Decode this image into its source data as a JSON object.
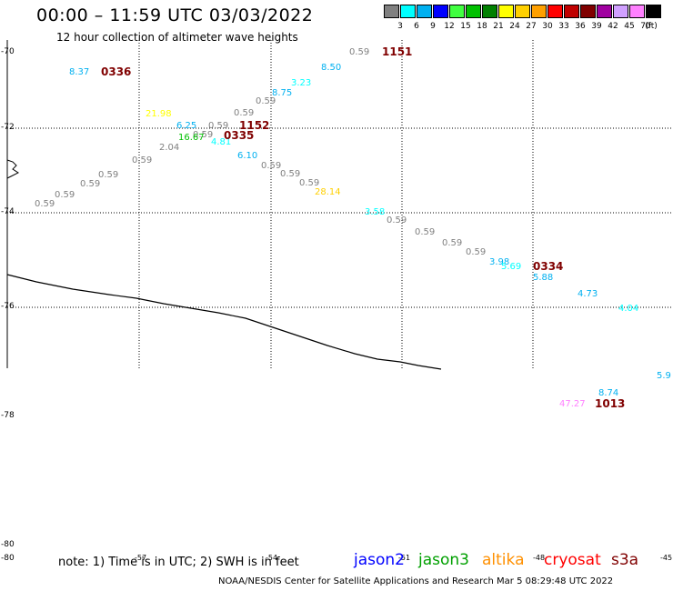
{
  "title": "00:00 – 11:59 UTC 03/03/2022",
  "subtitle": "12 hour collection of altimeter wave heights",
  "legend": {
    "unit": "(ft)",
    "bins": [
      {
        "label": "3",
        "color": "#808080"
      },
      {
        "label": "6",
        "color": "#00ffff"
      },
      {
        "label": "9",
        "color": "#00b0f0"
      },
      {
        "label": "12",
        "color": "#0000ff"
      },
      {
        "label": "15",
        "color": "#40ff40"
      },
      {
        "label": "18",
        "color": "#00c000"
      },
      {
        "label": "21",
        "color": "#008000"
      },
      {
        "label": "24",
        "color": "#ffff00"
      },
      {
        "label": "27",
        "color": "#ffd000"
      },
      {
        "label": "30",
        "color": "#ffa000"
      },
      {
        "label": "33",
        "color": "#ff0000"
      },
      {
        "label": "36",
        "color": "#c00000"
      },
      {
        "label": "39",
        "color": "#800000"
      },
      {
        "label": "42",
        "color": "#a000a0"
      },
      {
        "label": "45",
        "color": "#d0a0ff"
      },
      {
        "label": "70",
        "color": "#ff80ff"
      },
      {
        "label": "",
        "color": "#000000"
      }
    ]
  },
  "lat_labels": [
    "-70",
    "-72",
    "-74",
    "-76",
    "-78",
    "-80",
    "-80"
  ],
  "lon_labels": [
    "-57",
    "-54",
    "-51",
    "-48",
    "-45"
  ],
  "wave_heights": [
    {
      "v": "8.37",
      "c": "#00b0f0"
    },
    {
      "v": "0.59",
      "c": "#808080"
    },
    {
      "v": "8.50",
      "c": "#00b0f0"
    },
    {
      "v": "3.23",
      "c": "#00ffff"
    },
    {
      "v": "8.75",
      "c": "#00b0f0"
    },
    {
      "v": "0.59",
      "c": "#808080"
    },
    {
      "v": "0.59",
      "c": "#808080"
    },
    {
      "v": "21.98",
      "c": "#ffff00"
    },
    {
      "v": "6.25",
      "c": "#00b0f0"
    },
    {
      "v": "0.59",
      "c": "#808080"
    },
    {
      "v": "0.59",
      "c": "#808080"
    },
    {
      "v": "16.67",
      "c": "#00c000"
    },
    {
      "v": "4.81",
      "c": "#00ffff"
    },
    {
      "v": "2.04",
      "c": "#808080"
    },
    {
      "v": "0.59",
      "c": "#808080"
    },
    {
      "v": "6.10",
      "c": "#00b0f0"
    },
    {
      "v": "0.59",
      "c": "#808080"
    },
    {
      "v": "0.59",
      "c": "#808080"
    },
    {
      "v": "0.59",
      "c": "#808080"
    },
    {
      "v": "0.59",
      "c": "#808080"
    },
    {
      "v": "0.59",
      "c": "#808080"
    },
    {
      "v": "28.14",
      "c": "#ffd000"
    },
    {
      "v": "0.59",
      "c": "#808080"
    },
    {
      "v": "3.58",
      "c": "#00ffff"
    },
    {
      "v": "0.59",
      "c": "#808080"
    },
    {
      "v": "0.59",
      "c": "#808080"
    },
    {
      "v": "0.59",
      "c": "#808080"
    },
    {
      "v": "0.59",
      "c": "#808080"
    },
    {
      "v": "3.98",
      "c": "#00b0f0"
    },
    {
      "v": "5.69",
      "c": "#00ffff"
    },
    {
      "v": "5.88",
      "c": "#00b0f0"
    },
    {
      "v": "4.73",
      "c": "#00b0f0"
    },
    {
      "v": "4.04",
      "c": "#00ffff"
    },
    {
      "v": "5.9",
      "c": "#00b0f0"
    },
    {
      "v": "8.74",
      "c": "#00b0f0"
    },
    {
      "v": "47.27",
      "c": "#ff80ff"
    }
  ],
  "time_labels": [
    "0336",
    "1151",
    "1152",
    "0335",
    "0334",
    "1013"
  ],
  "note": "note: 1) Time is in UTC; 2) SWH is in feet",
  "satellites": [
    {
      "name": "jason2",
      "color": "#0000ff"
    },
    {
      "name": "jason3",
      "color": "#00a000"
    },
    {
      "name": "altika",
      "color": "#ff9000"
    },
    {
      "name": "cryosat",
      "color": "#ff0000"
    },
    {
      "name": "s3a",
      "color": "#800000"
    }
  ],
  "credits": "NOAA/NESDIS Center for Satellite Applications and Research    Mar  5 08:29:48 UTC 2022"
}
